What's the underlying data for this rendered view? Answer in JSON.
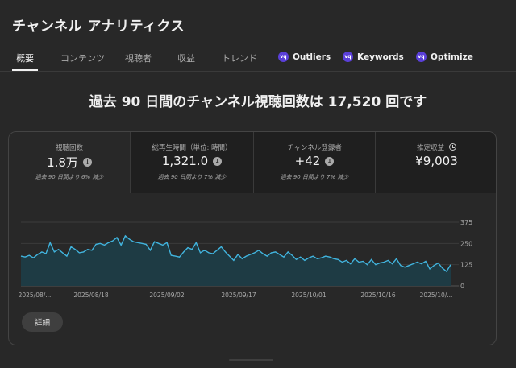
{
  "page": {
    "title": "チャンネル アナリティクス",
    "headline": "過去 90 日間のチャンネル視聴回数は 17,520 回です"
  },
  "tabs": [
    {
      "label": "概要",
      "active": true
    },
    {
      "label": "コンテンツ"
    },
    {
      "label": "視聴者"
    },
    {
      "label": "収益"
    },
    {
      "label": "トレンド"
    }
  ],
  "extension_tabs": [
    {
      "label": "Outliers",
      "icon": "vidiq-icon"
    },
    {
      "label": "Keywords",
      "icon": "vidiq-icon"
    },
    {
      "label": "Optimize",
      "icon": "vidiq-icon"
    }
  ],
  "metrics": [
    {
      "label": "視聴回数",
      "value": "1.8万",
      "sub": "過去 90 日間より 6% 減少",
      "trend_icon": "down-arrow-icon"
    },
    {
      "label": "総再生時間（単位: 時間）",
      "value": "1,321.0",
      "sub": "過去 90 日間より 7% 減少",
      "trend_icon": "down-arrow-icon"
    },
    {
      "label": "チャンネル登録者",
      "value": "+42",
      "sub": "過去 90 日間より 7% 減少",
      "trend_icon": "down-arrow-icon"
    },
    {
      "label": "推定収益",
      "value": "¥9,003",
      "sub": "",
      "trend_icon": "clock-icon"
    }
  ],
  "details_button": "詳細",
  "colors": {
    "line": "#41b4de",
    "area": "#1e3b44",
    "extension_badge": "#5a3fd8"
  },
  "chart_data": {
    "type": "area",
    "x_tick_labels": [
      "2025/08/...",
      "2025/08/18",
      "2025/09/02",
      "2025/09/17",
      "2025/10/01",
      "2025/10/16",
      "2025/10/..."
    ],
    "y_tick_labels": [
      "375",
      "250",
      "125",
      "0"
    ],
    "ylim": [
      0,
      375
    ],
    "grid": true,
    "values": [
      175,
      170,
      180,
      165,
      185,
      200,
      190,
      255,
      200,
      215,
      195,
      175,
      230,
      215,
      195,
      200,
      215,
      210,
      245,
      250,
      240,
      255,
      265,
      285,
      240,
      295,
      275,
      260,
      255,
      250,
      245,
      210,
      260,
      250,
      240,
      255,
      180,
      175,
      170,
      200,
      225,
      215,
      255,
      195,
      210,
      195,
      190,
      210,
      230,
      200,
      175,
      150,
      185,
      160,
      175,
      185,
      195,
      210,
      190,
      175,
      195,
      200,
      185,
      170,
      200,
      180,
      155,
      170,
      150,
      165,
      175,
      160,
      165,
      175,
      170,
      160,
      155,
      140,
      150,
      130,
      160,
      140,
      145,
      125,
      155,
      125,
      135,
      140,
      150,
      130,
      160,
      120,
      110,
      120,
      130,
      140,
      130,
      145,
      100,
      120,
      135,
      105,
      85,
      125
    ]
  }
}
